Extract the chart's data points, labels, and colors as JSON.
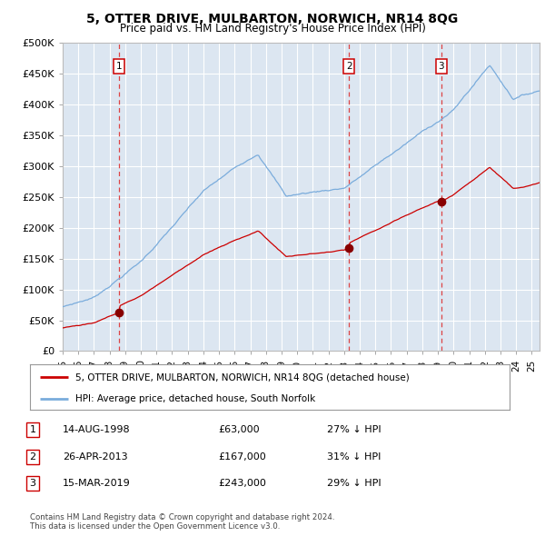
{
  "title": "5, OTTER DRIVE, MULBARTON, NORWICH, NR14 8QG",
  "subtitle": "Price paid vs. HM Land Registry's House Price Index (HPI)",
  "ylabel_ticks": [
    "£0",
    "£50K",
    "£100K",
    "£150K",
    "£200K",
    "£250K",
    "£300K",
    "£350K",
    "£400K",
    "£450K",
    "£500K"
  ],
  "ytick_values": [
    0,
    50000,
    100000,
    150000,
    200000,
    250000,
    300000,
    350000,
    400000,
    450000,
    500000
  ],
  "ylim": [
    0,
    500000
  ],
  "sale_dates": [
    1998.62,
    2013.32,
    2019.21
  ],
  "sale_prices": [
    63000,
    167000,
    243000
  ],
  "sale_labels": [
    "1",
    "2",
    "3"
  ],
  "legend_property": "5, OTTER DRIVE, MULBARTON, NORWICH, NR14 8QG (detached house)",
  "legend_hpi": "HPI: Average price, detached house, South Norfolk",
  "table_rows": [
    [
      "1",
      "14-AUG-1998",
      "£63,000",
      "27% ↓ HPI"
    ],
    [
      "2",
      "26-APR-2013",
      "£167,000",
      "31% ↓ HPI"
    ],
    [
      "3",
      "15-MAR-2019",
      "£243,000",
      "29% ↓ HPI"
    ]
  ],
  "footer": "Contains HM Land Registry data © Crown copyright and database right 2024.\nThis data is licensed under the Open Government Licence v3.0.",
  "property_line_color": "#cc0000",
  "hpi_line_color": "#7aacdc",
  "vline_color": "#dd4444",
  "dot_color": "#880000",
  "bg_color": "#dce6f1",
  "grid_color": "#ffffff",
  "xlim_start": 1995.0,
  "xlim_end": 2025.5,
  "xtick_years": [
    1995,
    1996,
    1997,
    1998,
    1999,
    2000,
    2001,
    2002,
    2003,
    2004,
    2005,
    2006,
    2007,
    2008,
    2009,
    2010,
    2011,
    2012,
    2013,
    2014,
    2015,
    2016,
    2017,
    2018,
    2019,
    2020,
    2021,
    2022,
    2023,
    2024,
    2025
  ],
  "xtick_labels": [
    "95",
    "96",
    "97",
    "98",
    "99",
    "00",
    "01",
    "02",
    "03",
    "04",
    "05",
    "06",
    "07",
    "08",
    "09",
    "10",
    "11",
    "12",
    "13",
    "14",
    "15",
    "16",
    "17",
    "18",
    "19",
    "20",
    "21",
    "22",
    "23",
    "24",
    "25"
  ]
}
